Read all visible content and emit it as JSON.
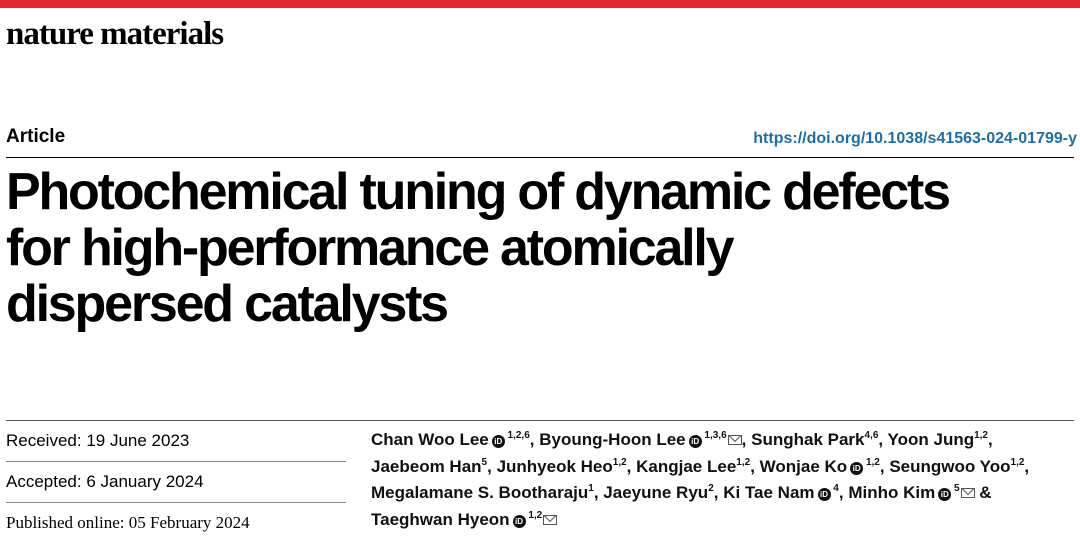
{
  "journal": "nature materials",
  "section": "Article",
  "doi": "https://doi.org/10.1038/s41563-024-01799-y",
  "title_lines": [
    "Photochemical tuning of dynamic defects",
    "for high-performance atomically",
    "dispersed catalysts"
  ],
  "dates": {
    "received": "Received: 19 June 2023",
    "accepted": "Accepted: 6 January 2024",
    "published": "Published online: 05 February 2024"
  },
  "orcid_label": "iD",
  "authors": [
    {
      "name": "Chan Woo Lee",
      "orcid": true,
      "aff": "1,2,6",
      "corr": false
    },
    {
      "name": "Byoung-Hoon Lee",
      "orcid": true,
      "aff": "1,3,6",
      "corr": true
    },
    {
      "name": "Sunghak Park",
      "orcid": false,
      "aff": "4,6",
      "corr": false
    },
    {
      "name": "Yoon Jung",
      "orcid": false,
      "aff": "1,2",
      "corr": false
    },
    {
      "name": "Jaebeom Han",
      "orcid": false,
      "aff": "5",
      "corr": false
    },
    {
      "name": "Junhyeok Heo",
      "orcid": false,
      "aff": "1,2",
      "corr": false
    },
    {
      "name": "Kangjae Lee",
      "orcid": false,
      "aff": "1,2",
      "corr": false
    },
    {
      "name": "Wonjae Ko",
      "orcid": true,
      "aff": "1,2",
      "corr": false
    },
    {
      "name": "Seungwoo Yoo",
      "orcid": false,
      "aff": "1,2",
      "corr": false
    },
    {
      "name": "Megalamane S. Bootharaju",
      "orcid": false,
      "aff": "1",
      "corr": false
    },
    {
      "name": "Jaeyune Ryu",
      "orcid": false,
      "aff": "2",
      "corr": false
    },
    {
      "name": "Ki Tae Nam",
      "orcid": true,
      "aff": "4",
      "corr": false
    },
    {
      "name": "Minho Kim",
      "orcid": true,
      "aff": "5",
      "corr": true
    },
    {
      "name": "Taeghwan Hyeon",
      "orcid": true,
      "aff": "1,2",
      "corr": true
    }
  ],
  "author_separator": ", ",
  "final_separator": " & "
}
